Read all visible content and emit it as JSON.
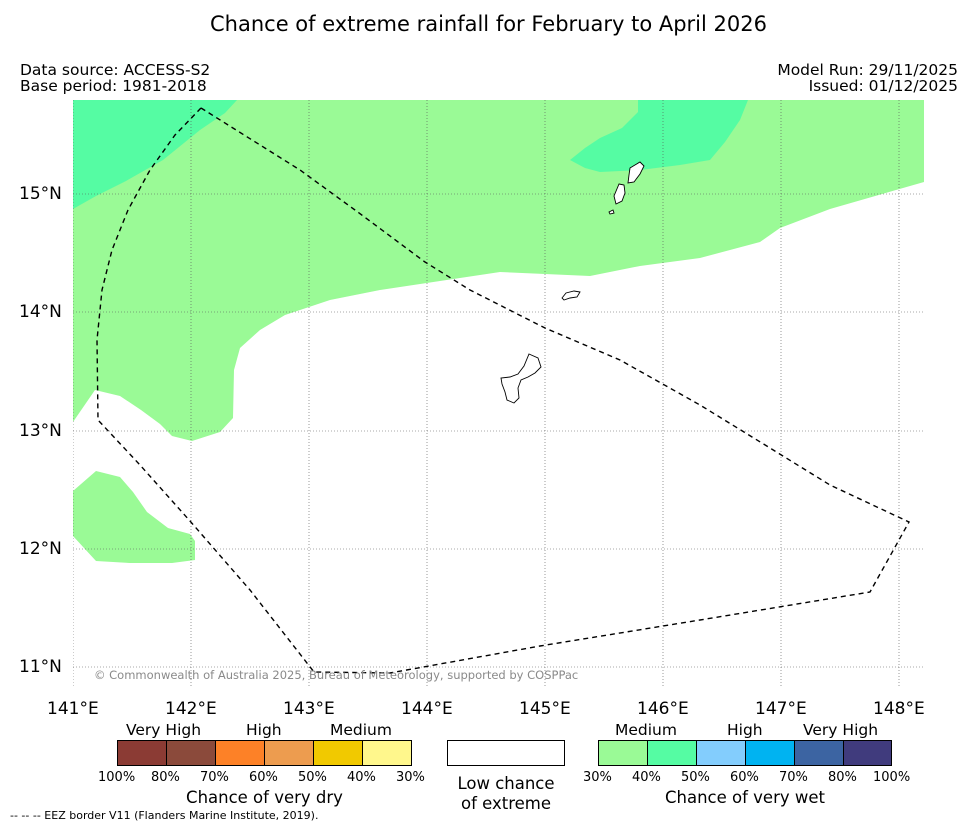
{
  "title": "Chance of extreme rainfall for February to April 2026",
  "data_source": "Data source: ACCESS-S2",
  "base_period": "Base period: 1981-2018",
  "model_run": "Model Run: 29/11/2025",
  "issued": "Issued: 01/12/2025",
  "copyright": "© Commonwealth of Australia 2025, Bureau of Meteorology, supported by COSPPac",
  "footnote": "--  --  -- EEZ border V11 (Flanders Marine Institute, 2019).",
  "map": {
    "lon_labels": [
      "141°E",
      "142°E",
      "143°E",
      "144°E",
      "145°E",
      "146°E",
      "147°E",
      "148°E"
    ],
    "lat_labels": [
      "15°N",
      "14°N",
      "13°N",
      "12°N",
      "11°N"
    ],
    "colors": {
      "medium_wet": "#9afa96",
      "high_wet": "#55fca3",
      "low": "#ffffff"
    }
  },
  "legend": {
    "dry": {
      "headers": {
        "very_high": "Very High",
        "high": "High",
        "medium": "Medium"
      },
      "colors": [
        "#8b3b34",
        "#8b4a3b",
        "#fd8127",
        "#ed9c4f",
        "#f1c900",
        "#fff78c"
      ],
      "ticks": [
        "100%",
        "80%",
        "70%",
        "60%",
        "50%",
        "40%",
        "30%"
      ],
      "caption": "Chance of very dry"
    },
    "low": {
      "caption_line1": "Low chance",
      "caption_line2": "of extreme"
    },
    "wet": {
      "headers": {
        "medium": "Medium",
        "high": "High",
        "very_high": "Very High"
      },
      "colors": [
        "#9afa96",
        "#55fca3",
        "#83cdfd",
        "#00b3f1",
        "#3c64a2",
        "#403b7d"
      ],
      "ticks": [
        "30%",
        "40%",
        "50%",
        "60%",
        "70%",
        "80%",
        "100%"
      ],
      "caption": "Chance of very wet"
    }
  }
}
